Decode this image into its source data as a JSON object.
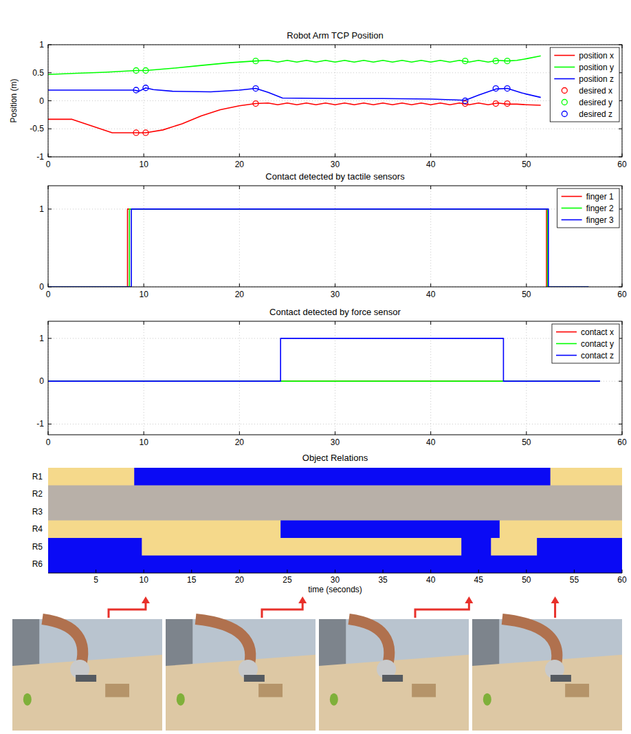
{
  "chart_data": [
    {
      "type": "line",
      "title": "Robot Arm TCP Position",
      "ylabel": "Position (m)",
      "xlim": [
        0,
        60
      ],
      "ylim": [
        -1,
        1
      ],
      "xticks": [
        0,
        10,
        20,
        30,
        40,
        50,
        60
      ],
      "yticks": [
        -1,
        -0.5,
        0,
        0.5,
        1
      ],
      "grid": true,
      "legend": "upper right",
      "series": [
        {
          "name": "position x",
          "color": "#ff0000",
          "type": "line",
          "x": [
            0,
            2.5,
            6.7,
            9.2,
            10.2,
            12,
            14,
            16,
            18,
            20,
            21.7,
            23,
            24,
            25,
            26,
            27,
            28,
            29,
            30,
            31,
            32,
            33,
            34,
            35,
            36,
            37,
            38,
            39,
            40,
            41,
            42,
            43,
            44,
            45,
            46,
            47,
            48,
            49,
            50,
            51.5
          ],
          "values": [
            -0.33,
            -0.33,
            -0.57,
            -0.57,
            -0.57,
            -0.52,
            -0.41,
            -0.27,
            -0.16,
            -0.09,
            -0.05,
            -0.04,
            -0.07,
            -0.04,
            -0.07,
            -0.04,
            -0.07,
            -0.04,
            -0.07,
            -0.04,
            -0.07,
            -0.04,
            -0.07,
            -0.04,
            -0.07,
            -0.04,
            -0.07,
            -0.04,
            -0.07,
            -0.04,
            -0.07,
            -0.04,
            -0.07,
            -0.04,
            -0.07,
            -0.04,
            -0.06,
            -0.06,
            -0.07,
            -0.08
          ]
        },
        {
          "name": "position y",
          "color": "#00ff00",
          "type": "line",
          "x": [
            0,
            3,
            6,
            9.2,
            10.2,
            13,
            16,
            19,
            21.7,
            23,
            24,
            25,
            26,
            27,
            28,
            29,
            30,
            31,
            32,
            33,
            34,
            35,
            36,
            37,
            38,
            39,
            40,
            41,
            42,
            43,
            44,
            45,
            46,
            47,
            48,
            49,
            50,
            51.5
          ],
          "values": [
            0.47,
            0.49,
            0.51,
            0.54,
            0.54,
            0.58,
            0.63,
            0.68,
            0.71,
            0.72,
            0.69,
            0.72,
            0.69,
            0.72,
            0.69,
            0.72,
            0.69,
            0.72,
            0.69,
            0.72,
            0.69,
            0.72,
            0.69,
            0.72,
            0.69,
            0.72,
            0.69,
            0.72,
            0.69,
            0.72,
            0.69,
            0.72,
            0.69,
            0.72,
            0.71,
            0.72,
            0.75,
            0.8
          ]
        },
        {
          "name": "position z",
          "color": "#0000ff",
          "type": "line",
          "x": [
            0,
            9,
            9.5,
            10.2,
            11,
            13,
            17,
            20,
            21.7,
            23,
            24.5,
            30,
            35,
            40,
            43.6,
            45,
            46.8,
            48,
            49.5,
            51.5
          ],
          "values": [
            0.19,
            0.19,
            0.17,
            0.23,
            0.2,
            0.17,
            0.16,
            0.19,
            0.22,
            0.15,
            0.05,
            0.04,
            0.04,
            0.03,
            0.01,
            0.1,
            0.21,
            0.22,
            0.14,
            0.06
          ]
        },
        {
          "name": "desired x",
          "color": "#ff0000",
          "type": "scatter",
          "marker": "circle",
          "x": [
            9.2,
            10.2,
            21.7,
            43.6,
            46.8,
            48
          ],
          "values": [
            -0.57,
            -0.57,
            -0.05,
            -0.05,
            -0.05,
            -0.05
          ]
        },
        {
          "name": "desired y",
          "color": "#00ff00",
          "type": "scatter",
          "marker": "circle",
          "x": [
            9.2,
            10.2,
            21.7,
            43.6,
            46.8,
            48
          ],
          "values": [
            0.54,
            0.54,
            0.71,
            0.71,
            0.71,
            0.71
          ]
        },
        {
          "name": "desired z",
          "color": "#0000ff",
          "type": "scatter",
          "marker": "circle",
          "x": [
            9.2,
            10.2,
            21.7,
            43.6,
            46.8,
            48
          ],
          "values": [
            0.19,
            0.23,
            0.22,
            0.0,
            0.22,
            0.22
          ]
        }
      ]
    },
    {
      "type": "line",
      "title": "Contact detected by tactile sensors",
      "xlim": [
        0,
        60
      ],
      "ylim": [
        0,
        1.3
      ],
      "xticks": [
        0,
        10,
        20,
        30,
        40,
        50,
        60
      ],
      "yticks": [
        0,
        1
      ],
      "grid": true,
      "legend": "upper right",
      "series": [
        {
          "name": "finger 1",
          "color": "#ff0000",
          "x": [
            0,
            8.3,
            8.3,
            52.1,
            52.1,
            56.5
          ],
          "values": [
            0,
            0,
            1,
            1,
            0,
            0
          ]
        },
        {
          "name": "finger 2",
          "color": "#00ff00",
          "x": [
            0,
            8.5,
            8.5,
            52.2,
            52.2,
            56.5
          ],
          "values": [
            0,
            0,
            1,
            1,
            0,
            0
          ]
        },
        {
          "name": "finger 3",
          "color": "#0000ff",
          "x": [
            0,
            8.7,
            8.7,
            52.3,
            52.3,
            56.5
          ],
          "values": [
            0,
            0,
            1,
            1,
            0,
            0
          ]
        }
      ]
    },
    {
      "type": "line",
      "title": "Contact detected by force sensor",
      "xlim": [
        0,
        60
      ],
      "ylim": [
        -1.25,
        1.4
      ],
      "xticks": [
        0,
        10,
        20,
        30,
        40,
        50,
        60
      ],
      "yticks": [
        -1,
        0,
        1
      ],
      "grid": true,
      "legend": "upper right",
      "series": [
        {
          "name": "contact x",
          "color": "#ff0000",
          "x": [
            0,
            57.7
          ],
          "values": [
            0,
            0
          ]
        },
        {
          "name": "contact y",
          "color": "#00ff00",
          "x": [
            0,
            57.7
          ],
          "values": [
            0,
            0
          ]
        },
        {
          "name": "contact z",
          "color": "#0000ff",
          "x": [
            0,
            24.3,
            24.3,
            47.6,
            47.6,
            57.7
          ],
          "values": [
            0,
            0,
            1,
            1,
            0,
            0
          ]
        }
      ]
    },
    {
      "type": "heatmap",
      "title": "Object Relations",
      "xlabel": "time (seconds)",
      "xlim": [
        0,
        60
      ],
      "xticks": [
        5,
        10,
        15,
        20,
        25,
        30,
        35,
        40,
        45,
        50,
        55,
        60
      ],
      "categories": [
        "R1",
        "R2",
        "R3",
        "R4",
        "R5",
        "R6"
      ],
      "colors": [
        "#f5d98b",
        "#b8b0a8",
        "#0a0af5"
      ],
      "cells": [
        [
          {
            "start": 0,
            "end": 9,
            "value": 0
          },
          {
            "start": 9,
            "end": 52.5,
            "value": 1
          },
          {
            "start": 52.5,
            "end": 60,
            "value": 0
          }
        ],
        [
          {
            "start": 0,
            "end": 60,
            "value": 0.5
          }
        ],
        [
          {
            "start": 0,
            "end": 60,
            "value": 0.5
          }
        ],
        [
          {
            "start": 0,
            "end": 24.3,
            "value": 0
          },
          {
            "start": 24.3,
            "end": 47.2,
            "value": 1
          },
          {
            "start": 47.2,
            "end": 60,
            "value": 0
          }
        ],
        [
          {
            "start": 0,
            "end": 9.8,
            "value": 1
          },
          {
            "start": 9.8,
            "end": 43.2,
            "value": 0
          },
          {
            "start": 43.2,
            "end": 46.3,
            "value": 1
          },
          {
            "start": 46.3,
            "end": 51.1,
            "value": 0
          },
          {
            "start": 51.1,
            "end": 60,
            "value": 1
          }
        ],
        [
          {
            "start": 0,
            "end": 60,
            "value": 1
          }
        ]
      ],
      "snapshots": [
        10.2,
        26.6,
        44,
        53
      ]
    }
  ]
}
